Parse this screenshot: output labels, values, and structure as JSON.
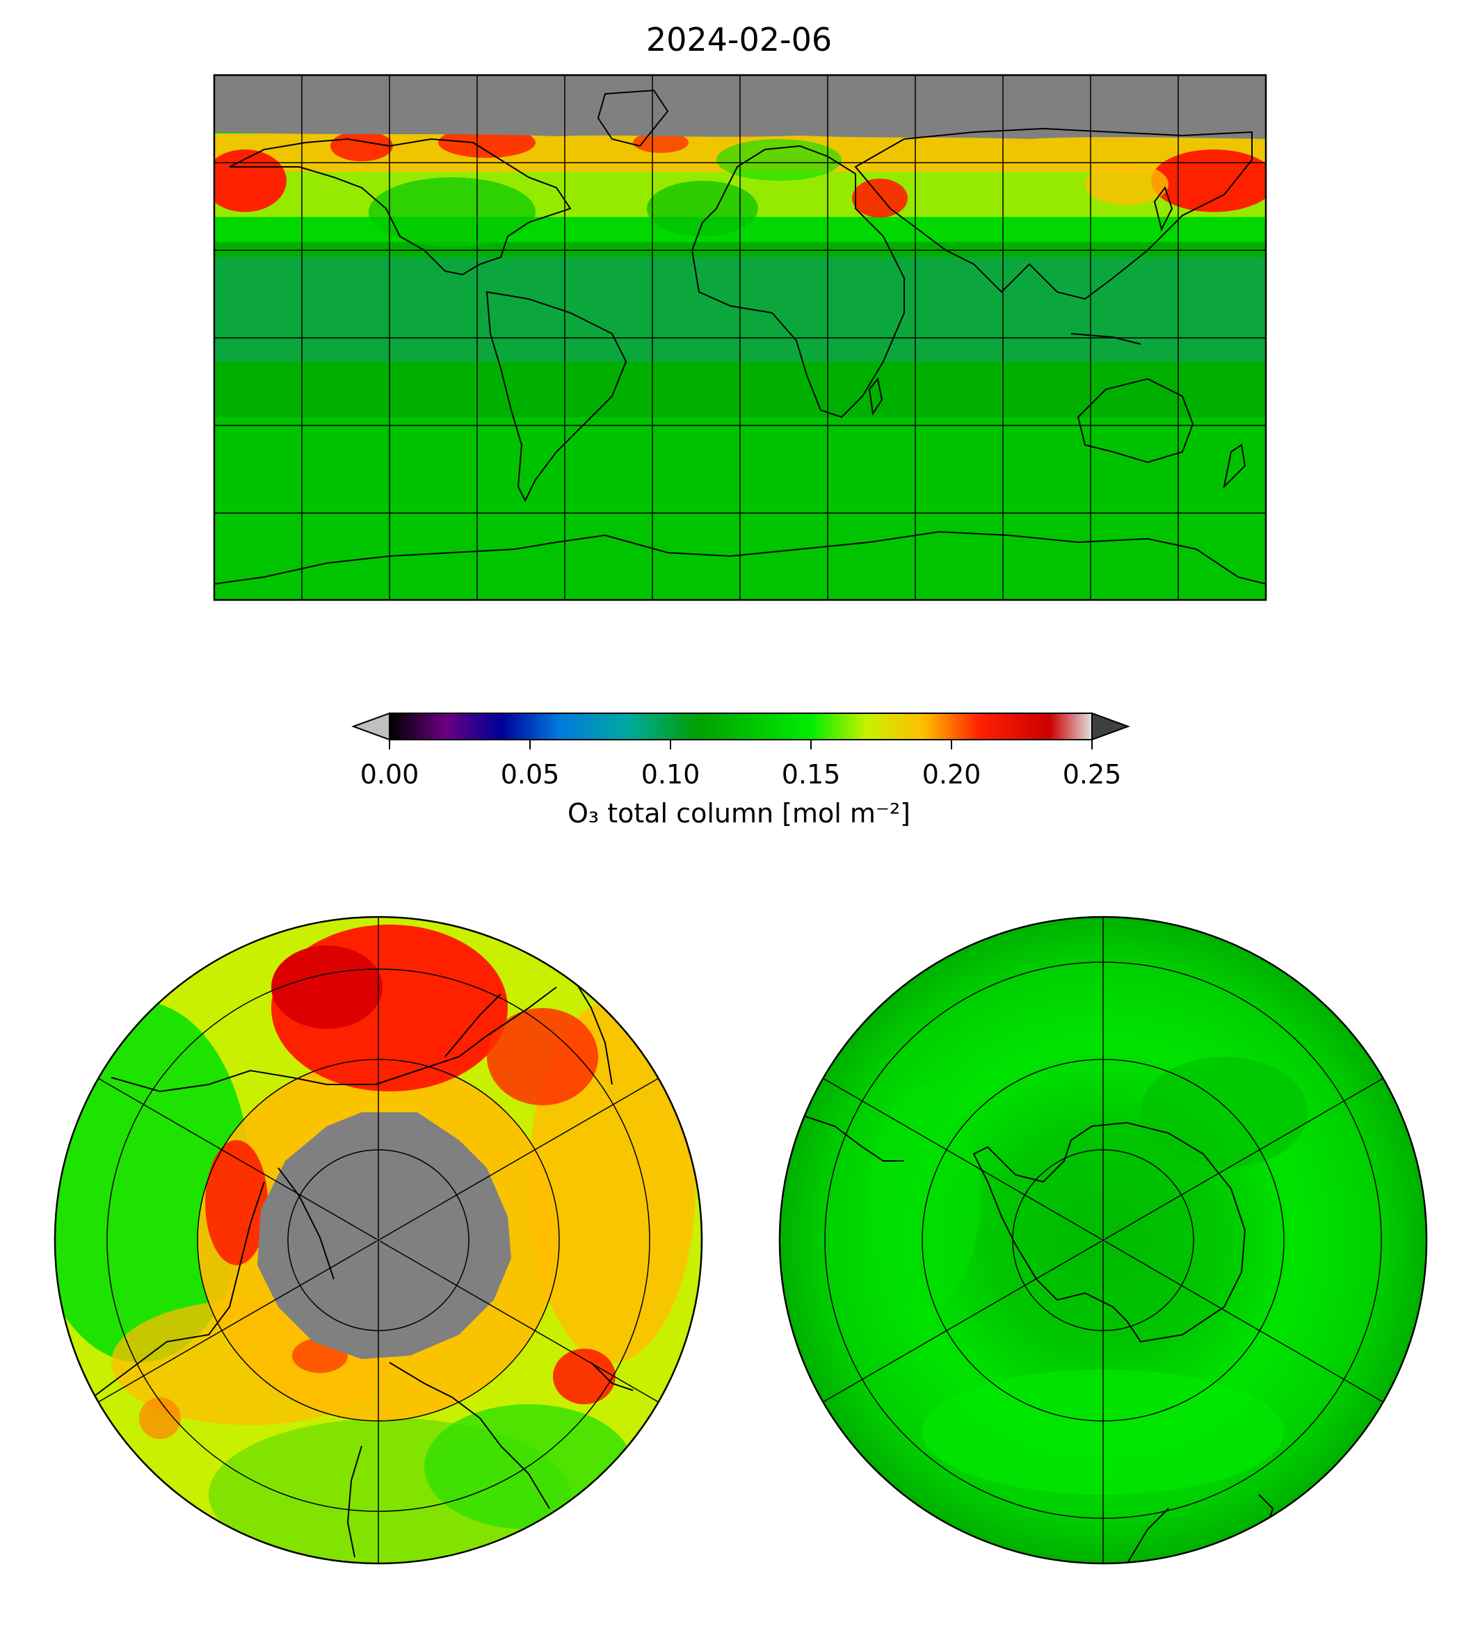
{
  "title": "2024-02-06",
  "colorbar": {
    "label": "O₃ total column [mol m⁻²]",
    "min": 0.0,
    "max": 0.25,
    "extend": "both",
    "under_color": "#c0c0c0",
    "over_color": "#404040",
    "ticks": [
      "0.00",
      "0.05",
      "0.10",
      "0.15",
      "0.20",
      "0.25"
    ],
    "tick_values": [
      0.0,
      0.05,
      0.1,
      0.15,
      0.2,
      0.25
    ],
    "stops": [
      {
        "v": 0.0,
        "c": "#000000"
      },
      {
        "v": 0.02,
        "c": "#6a0080"
      },
      {
        "v": 0.04,
        "c": "#00009a"
      },
      {
        "v": 0.06,
        "c": "#0077dd"
      },
      {
        "v": 0.085,
        "c": "#00a9a0"
      },
      {
        "v": 0.11,
        "c": "#00a000"
      },
      {
        "v": 0.15,
        "c": "#00ee00"
      },
      {
        "v": 0.17,
        "c": "#c8f000"
      },
      {
        "v": 0.19,
        "c": "#ffbe00"
      },
      {
        "v": 0.21,
        "c": "#ff2000"
      },
      {
        "v": 0.235,
        "c": "#cc0000"
      },
      {
        "v": 0.25,
        "c": "#e0e0e0"
      }
    ]
  },
  "maps": {
    "global": {
      "projection": "plate carree",
      "graticule_lon_step_deg": 30,
      "graticule_lat_step_deg": 30,
      "no_data_color": "#808080"
    },
    "north_polar": {
      "projection": "north polar stereographic",
      "no_data_color": "#808080"
    },
    "south_polar": {
      "projection": "south polar stereographic",
      "no_data_color": "#808080"
    }
  }
}
